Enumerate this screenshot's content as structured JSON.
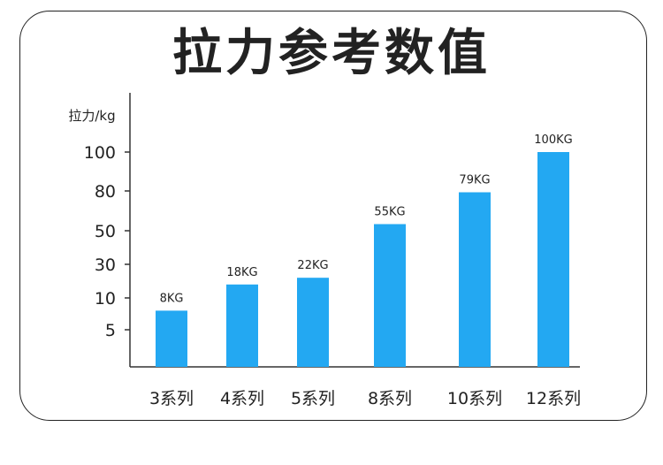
{
  "title": "拉力参考数值",
  "colors": {
    "bar": "#23a8f2",
    "axis": "#333333",
    "text": "#222222",
    "border": "#222222"
  },
  "chart_data": {
    "type": "bar",
    "title": "拉力参考数值",
    "ylabel": "拉力/kg",
    "xlabel": "",
    "categories": [
      "3系列",
      "4系列",
      "5系列",
      "8系列",
      "10系列",
      "12系列"
    ],
    "values": [
      8,
      18,
      22,
      55,
      79,
      100
    ],
    "data_labels": [
      "8KG",
      "18KG",
      "22KG",
      "55KG",
      "79KG",
      "100KG"
    ],
    "y_ticks": [
      5,
      10,
      30,
      50,
      80,
      100
    ],
    "y_tick_labels": [
      "5",
      "10",
      "30",
      "50",
      "80",
      "100"
    ],
    "y_scale": "non-linear (irregular tick spacing)",
    "grid": false,
    "legend": "none"
  }
}
